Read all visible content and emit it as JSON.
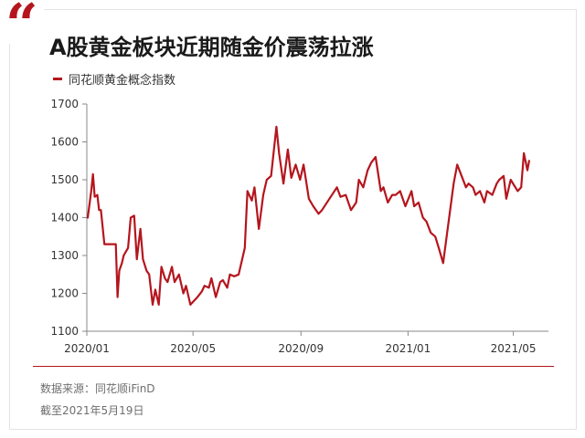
{
  "quote_mark": "“",
  "title": "A股黄金板块近期随金价震荡拉涨",
  "source": "数据来源：同花顺iFinD",
  "cutoff": "截至2021年5月19日",
  "colors": {
    "accent": "#b5151d",
    "axis": "#888888",
    "text": "#222222"
  },
  "chart_data": {
    "type": "line",
    "title": "",
    "xlabel": "",
    "ylabel": "",
    "ylim": [
      1100,
      1700
    ],
    "yticks": [
      1100,
      1200,
      1300,
      1400,
      1500,
      1600,
      1700
    ],
    "xticks": [
      "2020/01",
      "2020/05",
      "2020/09",
      "2021/01",
      "2021/05"
    ],
    "grid": false,
    "legend": "top-left",
    "series": [
      {
        "name": "同花顺黄金概念指数",
        "color": "#b5151d",
        "x": [
          "2020-01-02",
          "2020-01-06",
          "2020-01-08",
          "2020-01-10",
          "2020-01-13",
          "2020-01-15",
          "2020-01-17",
          "2020-01-21",
          "2020-01-23",
          "2020-02-03",
          "2020-02-05",
          "2020-02-07",
          "2020-02-10",
          "2020-02-12",
          "2020-02-17",
          "2020-02-20",
          "2020-02-24",
          "2020-02-27",
          "2020-03-02",
          "2020-03-05",
          "2020-03-09",
          "2020-03-12",
          "2020-03-16",
          "2020-03-19",
          "2020-03-23",
          "2020-03-26",
          "2020-03-30",
          "2020-04-02",
          "2020-04-07",
          "2020-04-10",
          "2020-04-15",
          "2020-04-20",
          "2020-04-23",
          "2020-04-28",
          "2020-05-06",
          "2020-05-11",
          "2020-05-14",
          "2020-05-19",
          "2020-05-22",
          "2020-05-27",
          "2020-06-01",
          "2020-06-04",
          "2020-06-09",
          "2020-06-12",
          "2020-06-17",
          "2020-06-22",
          "2020-06-29",
          "2020-07-02",
          "2020-07-07",
          "2020-07-10",
          "2020-07-15",
          "2020-07-20",
          "2020-07-24",
          "2020-07-29",
          "2020-08-04",
          "2020-08-07",
          "2020-08-12",
          "2020-08-17",
          "2020-08-21",
          "2020-08-26",
          "2020-08-31",
          "2020-09-04",
          "2020-09-10",
          "2020-09-15",
          "2020-09-21",
          "2020-09-25",
          "2020-10-12",
          "2020-10-16",
          "2020-10-22",
          "2020-10-28",
          "2020-11-03",
          "2020-11-06",
          "2020-11-11",
          "2020-11-16",
          "2020-11-20",
          "2020-11-25",
          "2020-12-01",
          "2020-12-04",
          "2020-12-09",
          "2020-12-14",
          "2020-12-18",
          "2020-12-23",
          "2020-12-29",
          "2021-01-05",
          "2021-01-08",
          "2021-01-13",
          "2021-01-18",
          "2021-01-22",
          "2021-01-27",
          "2021-02-01",
          "2021-02-05",
          "2021-02-10",
          "2021-02-22",
          "2021-02-26",
          "2021-03-03",
          "2021-03-08",
          "2021-03-11",
          "2021-03-16",
          "2021-03-19",
          "2021-03-24",
          "2021-03-29",
          "2021-04-01",
          "2021-04-07",
          "2021-04-12",
          "2021-04-15",
          "2021-04-20",
          "2021-04-23",
          "2021-04-28",
          "2021-05-06",
          "2021-05-10",
          "2021-05-13",
          "2021-05-17",
          "2021-05-19"
        ],
        "values": [
          1400,
          1470,
          1515,
          1455,
          1460,
          1420,
          1420,
          1330,
          1330,
          1330,
          1190,
          1260,
          1280,
          1300,
          1320,
          1400,
          1405,
          1290,
          1370,
          1290,
          1260,
          1250,
          1170,
          1210,
          1170,
          1270,
          1240,
          1230,
          1270,
          1230,
          1250,
          1200,
          1220,
          1170,
          1190,
          1205,
          1220,
          1215,
          1240,
          1190,
          1230,
          1235,
          1215,
          1250,
          1245,
          1250,
          1320,
          1470,
          1445,
          1480,
          1370,
          1460,
          1500,
          1510,
          1640,
          1570,
          1490,
          1580,
          1505,
          1540,
          1500,
          1540,
          1450,
          1430,
          1410,
          1420,
          1480,
          1455,
          1460,
          1420,
          1440,
          1500,
          1480,
          1525,
          1545,
          1560,
          1470,
          1480,
          1440,
          1460,
          1460,
          1470,
          1430,
          1470,
          1430,
          1440,
          1400,
          1390,
          1360,
          1350,
          1320,
          1280,
          1490,
          1540,
          1510,
          1480,
          1490,
          1480,
          1460,
          1470,
          1440,
          1470,
          1460,
          1490,
          1500,
          1510,
          1450,
          1500,
          1470,
          1480,
          1570,
          1525,
          1550
        ]
      }
    ]
  }
}
